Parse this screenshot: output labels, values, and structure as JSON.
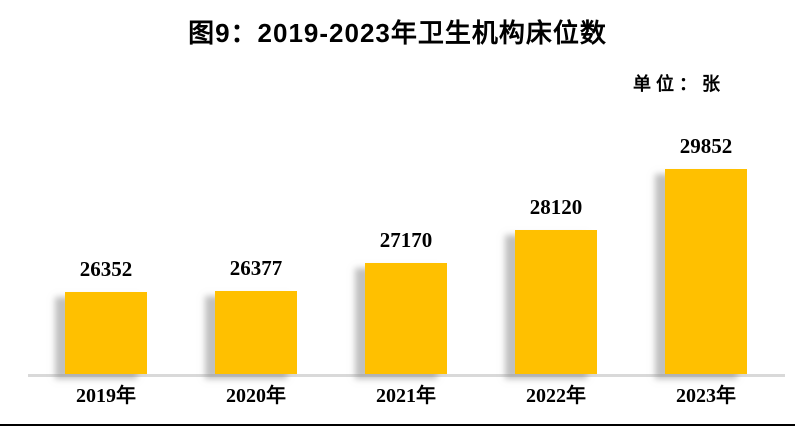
{
  "page": {
    "background": "#ffffff"
  },
  "chart_data": {
    "type": "bar",
    "title": "图9：2019-2023年卫生机构床位数",
    "unit_label": "单位：张",
    "categories": [
      "2019年",
      "2020年",
      "2021年",
      "2022年",
      "2023年"
    ],
    "values": [
      26352,
      26377,
      27170,
      28120,
      29852
    ],
    "data_labels": [
      26352,
      26377,
      27170,
      28120,
      29852
    ],
    "xlabel": "",
    "ylabel": "",
    "ylim": [
      24000,
      30000
    ],
    "grid": false,
    "legend": false,
    "bar_color": "#FFC000",
    "bar_shadow_color": "#8c8c8c",
    "axis_line_color": "#d9d9d9",
    "text_color": "#000000",
    "page_rule_color": "#000000"
  }
}
